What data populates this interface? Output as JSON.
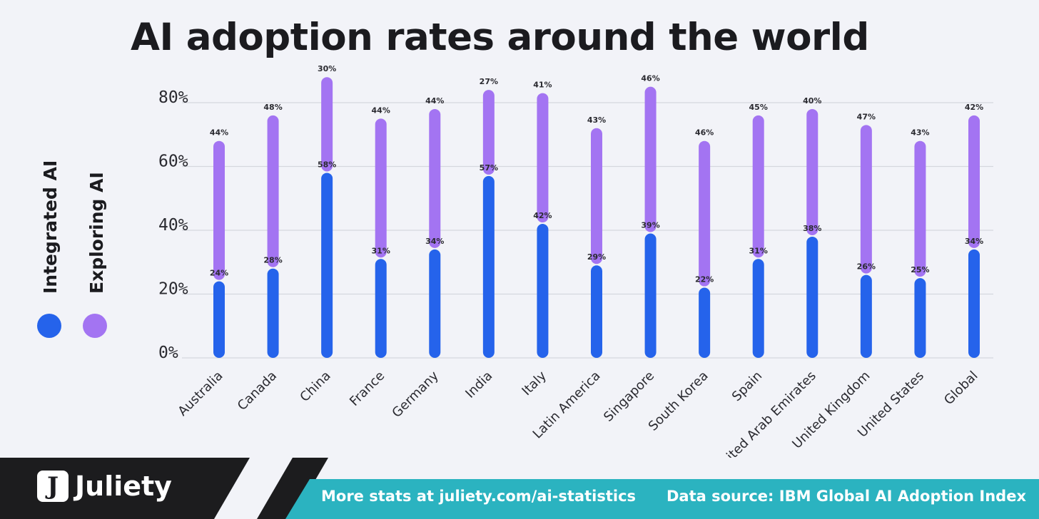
{
  "title": "AI adoption rates around the world",
  "legend": [
    {
      "label": "Integrated AI",
      "color": "#2563eb"
    },
    {
      "label": "Exploring AI",
      "color": "#a374f2"
    }
  ],
  "footer": {
    "brand": "Juliety",
    "logo_letter": "J",
    "stats_link": "More stats at juliety.com/ai-statistics",
    "source": "Data source:  IBM Global AI Adoption Index",
    "colors": {
      "dark": "#1c1c1e",
      "teal": "#2bb3c0"
    }
  },
  "chart_data": {
    "type": "bar",
    "stacked": true,
    "title": "AI adoption rates around the world",
    "categories": [
      "Australia",
      "Canada",
      "China",
      "France",
      "Germany",
      "India",
      "Italy",
      "Latin America",
      "Singapore",
      "South Korea",
      "Spain",
      "United Arab Emirates",
      "United Kingdom",
      "United States",
      "Global"
    ],
    "series": [
      {
        "name": "Integrated AI",
        "color": "#2563eb",
        "values": [
          24,
          28,
          58,
          31,
          34,
          57,
          42,
          29,
          39,
          22,
          31,
          38,
          26,
          25,
          34
        ]
      },
      {
        "name": "Exploring AI",
        "color": "#a374f2",
        "values": [
          44,
          48,
          30,
          44,
          44,
          27,
          41,
          43,
          46,
          46,
          45,
          40,
          47,
          43,
          42
        ]
      }
    ],
    "value_labels": {
      "Integrated AI": [
        "24%",
        "28%",
        "58%",
        "31%",
        "34%",
        "57%",
        "42%",
        "29%",
        "39%",
        "22%",
        "31%",
        "38%",
        "26%",
        "25%",
        "34%"
      ],
      "Exploring AI": [
        "44%",
        "48%",
        "30%",
        "44%",
        "44%",
        "27%",
        "41%",
        "43%",
        "46%",
        "46%",
        "45%",
        "40%",
        "47%",
        "43%",
        "42%"
      ]
    },
    "yticks": [
      "0%",
      "20%",
      "40%",
      "60%",
      "80%"
    ],
    "ylim": [
      0,
      80
    ],
    "grid": true,
    "legend_position": "left"
  }
}
